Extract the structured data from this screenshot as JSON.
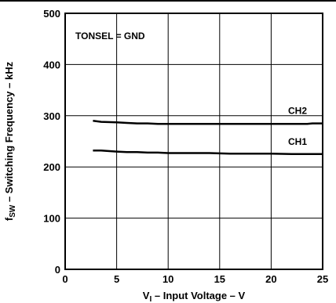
{
  "chart_data": {
    "type": "line",
    "title": "",
    "annotation": "TONSEL = GND",
    "xlabel": {
      "main": "V",
      "sub": "I",
      "rest": " – Input  Voltage – V"
    },
    "ylabel": {
      "main": "f",
      "sub": "SW",
      "rest": " – Switching Frequency – kHz"
    },
    "xlim": [
      0,
      25
    ],
    "ylim": [
      0,
      500
    ],
    "x_ticks": [
      0,
      5,
      10,
      15,
      20,
      25
    ],
    "y_ticks": [
      0,
      100,
      200,
      300,
      400,
      500
    ],
    "grid": true,
    "legend": "none",
    "series": [
      {
        "name": "CH2",
        "x": [
          2.7,
          3.5,
          5,
          6,
          7,
          8,
          9,
          10,
          12,
          14,
          16,
          18,
          20,
          22,
          23.5,
          24,
          25
        ],
        "y": [
          290,
          288,
          287,
          286,
          285,
          285,
          284,
          284,
          284,
          284,
          284,
          284,
          284,
          284,
          284,
          285,
          285
        ]
      },
      {
        "name": "CH1",
        "x": [
          2.7,
          3.5,
          5,
          6,
          7,
          8,
          9,
          10,
          12,
          14,
          16,
          18,
          20,
          22,
          24,
          25
        ],
        "y": [
          232,
          232,
          230,
          229,
          229,
          228,
          228,
          227,
          227,
          227,
          226,
          226,
          226,
          225,
          225,
          225
        ]
      }
    ]
  }
}
